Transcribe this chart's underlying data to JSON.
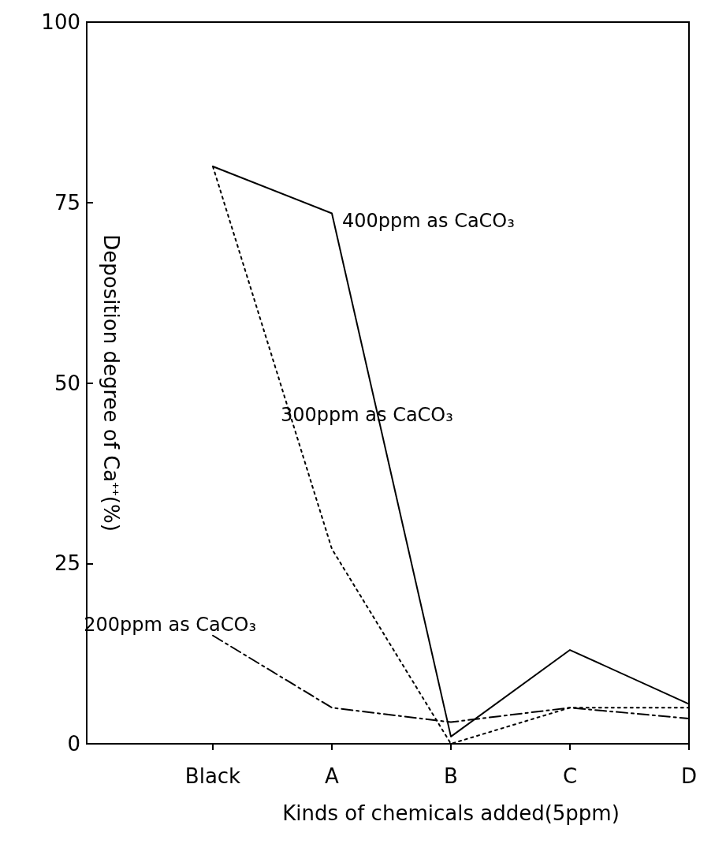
{
  "chart_data": {
    "type": "line",
    "xlabel": "Kinds of chemicals added(5ppm)",
    "ylabel": "Deposition degree of Ca$^{++}$(%)",
    "categories": [
      "Black",
      "A",
      "B",
      "C",
      "D"
    ],
    "series": [
      {
        "name": "400ppm as CaCO₃",
        "color": "#000000",
        "line_style": "solid",
        "values": [
          80,
          73.5,
          1,
          13,
          5.5
        ]
      },
      {
        "name": "300ppm as CaCO₃",
        "color": "#000000",
        "line_style": "dotted",
        "values": [
          80,
          27,
          0,
          5,
          5
        ]
      },
      {
        "name": "200ppm as CaCO₃",
        "color": "#000000",
        "line_style": "dashdot",
        "values": [
          15,
          5,
          3,
          5,
          3.5
        ]
      }
    ],
    "ylim": [
      0,
      100
    ],
    "yticks": [
      0,
      25,
      50,
      75,
      100
    ],
    "grid": false,
    "legend": false,
    "marker": "none"
  }
}
